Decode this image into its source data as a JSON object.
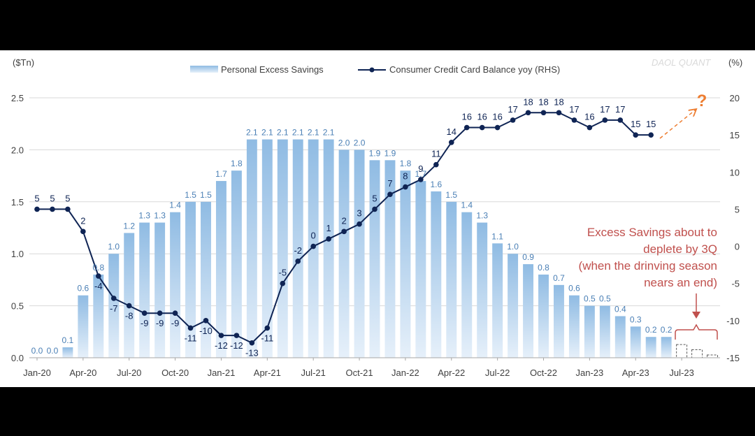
{
  "chart_data": {
    "type": "bar",
    "left_axis_unit": "($Tn)",
    "right_axis_unit": "(%)",
    "watermark": "DAOL QUANT",
    "x_tick_labels": [
      "Jan-20",
      "Apr-20",
      "Jul-20",
      "Oct-20",
      "Jan-21",
      "Apr-21",
      "Jul-21",
      "Oct-21",
      "Jan-22",
      "Apr-22",
      "Jul-22",
      "Oct-22",
      "Jan-23",
      "Apr-23",
      "Jul-23"
    ],
    "y_left": {
      "range": [
        0,
        2.5
      ],
      "ticks": [
        "0.0",
        "0.5",
        "1.0",
        "1.5",
        "2.0",
        "2.5"
      ]
    },
    "y_right": {
      "range": [
        -15,
        20
      ],
      "ticks": [
        "-15",
        "-10",
        "-5",
        "0",
        "5",
        "10",
        "15",
        "20"
      ]
    },
    "grid": true,
    "legend_position": "top",
    "series": [
      {
        "name": "Personal Excess Savings",
        "type": "bar",
        "axis": "left",
        "color": "#9dc3e6",
        "values": [
          0.0,
          0.0,
          0.1,
          0.6,
          0.8,
          1.0,
          1.2,
          1.3,
          1.3,
          1.4,
          1.5,
          1.5,
          1.7,
          1.8,
          2.1,
          2.1,
          2.1,
          2.1,
          2.1,
          2.1,
          2.0,
          2.0,
          1.9,
          1.9,
          1.8,
          1.7,
          1.6,
          1.5,
          1.4,
          1.3,
          1.1,
          1.0,
          0.9,
          0.8,
          0.7,
          0.6,
          0.5,
          0.5,
          0.4,
          0.3,
          0.2,
          0.2
        ]
      },
      {
        "name": "Consumer Credit Card Balance yoy (RHS)",
        "type": "line",
        "axis": "right",
        "color": "#0f2454",
        "values": [
          5,
          5,
          5,
          2,
          -4,
          -7,
          -8,
          -9,
          -9,
          -9,
          -11,
          -10,
          -12,
          -12,
          -13,
          -11,
          -5,
          -2,
          0,
          1,
          2,
          3,
          5,
          7,
          8,
          9,
          11,
          14,
          16,
          16,
          16,
          17,
          18,
          18,
          18,
          17,
          16,
          17,
          17,
          15,
          15
        ]
      }
    ],
    "projection_bar_values": [
      0.1,
      0.05,
      0.0
    ],
    "annotation_lines": [
      "Excess Savings about to",
      "deplete by 3Q",
      "(when the drinving season",
      "nears an end)"
    ],
    "question_mark": "?",
    "annotation_color": "#c0504d",
    "question_color": "#ed7d31"
  }
}
